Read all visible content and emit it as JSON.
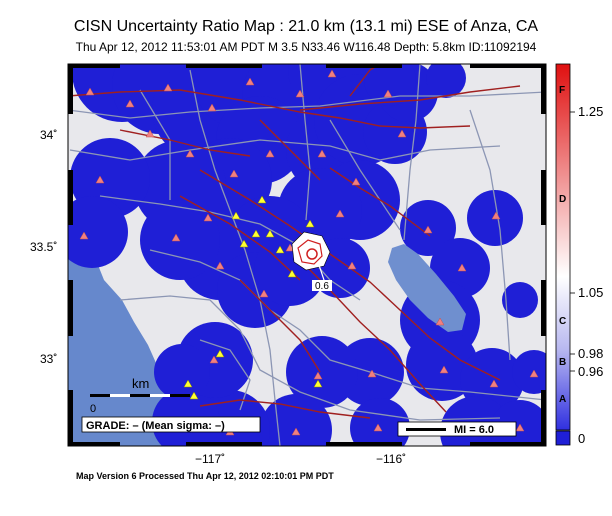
{
  "header": {
    "title": "CISN Uncertainty Ratio Map : 21.0 km (13.1 mi) ESE of Anza, CA",
    "subtitle": "Thu Apr 12, 2012 11:53:01 AM PDT   M 3.5   N33.46 W116.48   Depth: 5.8km   ID:11092194"
  },
  "map": {
    "lat_ticks": [
      "34˚",
      "33.5˚",
      "33˚"
    ],
    "lon_ticks": [
      "−117˚",
      "−116˚"
    ],
    "lat_range": [
      32.6,
      34.35
    ],
    "lon_range": [
      -117.75,
      -115.5
    ],
    "contour_label": "0.6",
    "scale_bar_label": "km",
    "scale_bar_start": "0",
    "grade_box": "GRADE: – (Mean sigma: –)",
    "mi_legend": "MI = 6.0",
    "colors": {
      "saturated_blue": "#1f1fd6",
      "background_gray": "#e8e8ec",
      "ocean": "#6688cc",
      "lake": "#6f8fcf",
      "fault": "#a02020",
      "road": "#8c96b4",
      "station_red": "#f08080",
      "station_yellow": "#ffff33"
    }
  },
  "colorbar": {
    "value_labels": [
      "1.25",
      "1.05",
      "0.98",
      "0.96",
      "0"
    ],
    "grade_labels": [
      "F",
      "D",
      "C",
      "B",
      "A"
    ]
  },
  "footer": {
    "text": "Map Version 6 Processed Thu Apr 12, 2012 02:10:01 PM PDT"
  }
}
